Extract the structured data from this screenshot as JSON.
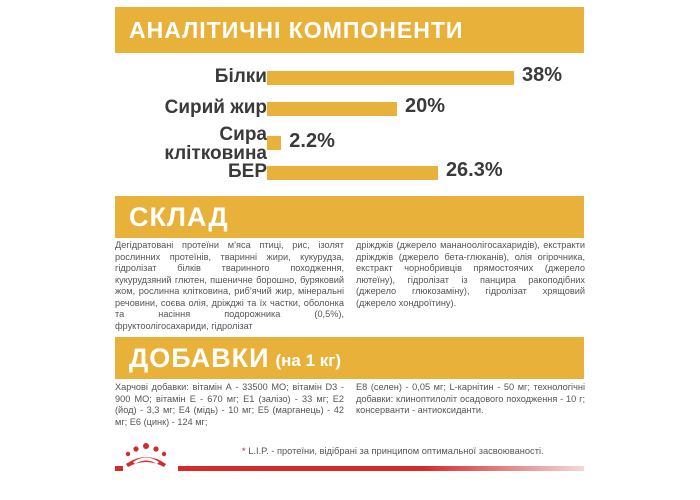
{
  "colors": {
    "accent": "#e8b23a",
    "brand_red": "#d42a2a",
    "text": "#3a3a3a"
  },
  "analytic": {
    "title": "АНАЛІТИЧНІ КОМПОНЕНТИ",
    "rows": [
      {
        "label": "Білки",
        "value": "38%",
        "percent": 38
      },
      {
        "label": "Сирий жир",
        "value": "20%",
        "percent": 20
      },
      {
        "label_line1": "Сира",
        "label_line2": "клітковина",
        "value": "2.2%",
        "percent": 2.2
      },
      {
        "label": "БЕР",
        "value": "26.3%",
        "percent": 26.3
      }
    ]
  },
  "composition": {
    "title": "СКЛАД",
    "left_text": "Дегідратовані протеїни м’яса птиці, рис, ізолят рослинних протеїнів, тваринні жири, кукурудза, гідролізат білків тваринного походження, кукурудзяний глютен, пшеничне борошно, буряковий жом, рослинна клітковина, риб’ячий жир, мінеральні речовини, соєва олія, дріжджі та їх частки, оболонка та насіння подорожника (0,5%), фруктоолігосахариди, гідролізат",
    "right_text": "дріжджів (джерело манано­олігосахаридів), екстракти дріжджів (джерело бета-глюканів), олія огірочника, екстракт чорнобривців прямостоячих (джерело лютеїну), гідролізат із панцира ракоподібних (джерело глюкозаміну), гідролізат хрящовий (джерело хондроїтину)."
  },
  "additives": {
    "title": "ДОБАВКИ",
    "subtitle": "(на 1 кг)",
    "left_text": "Харчові добавки: вітамін А - 33500 МО; вітамін D3 - 900 МО; вітамін Е - 670 мг; Е1 (залізо) - 33 мг; Е2 (йод) - 3,3 мг; Е4 (мідь) - 10 мг; Е5 (марганець) - 42 мг; Е6 (цинк) - 124 мг;",
    "right_text": "Е8 (селен) - 0,05 мг; L-карнітин - 50 мг; технологічні добавки: клиноптилоліт осадового походження - 10 г; консерванти - антиоксиданти."
  },
  "footnote": {
    "star": "*",
    "text": " L.I.P. - протеїни, відібрані за принципом оптимальної засвоюваності."
  },
  "logo": {
    "icon": "royal-crown-icon"
  }
}
